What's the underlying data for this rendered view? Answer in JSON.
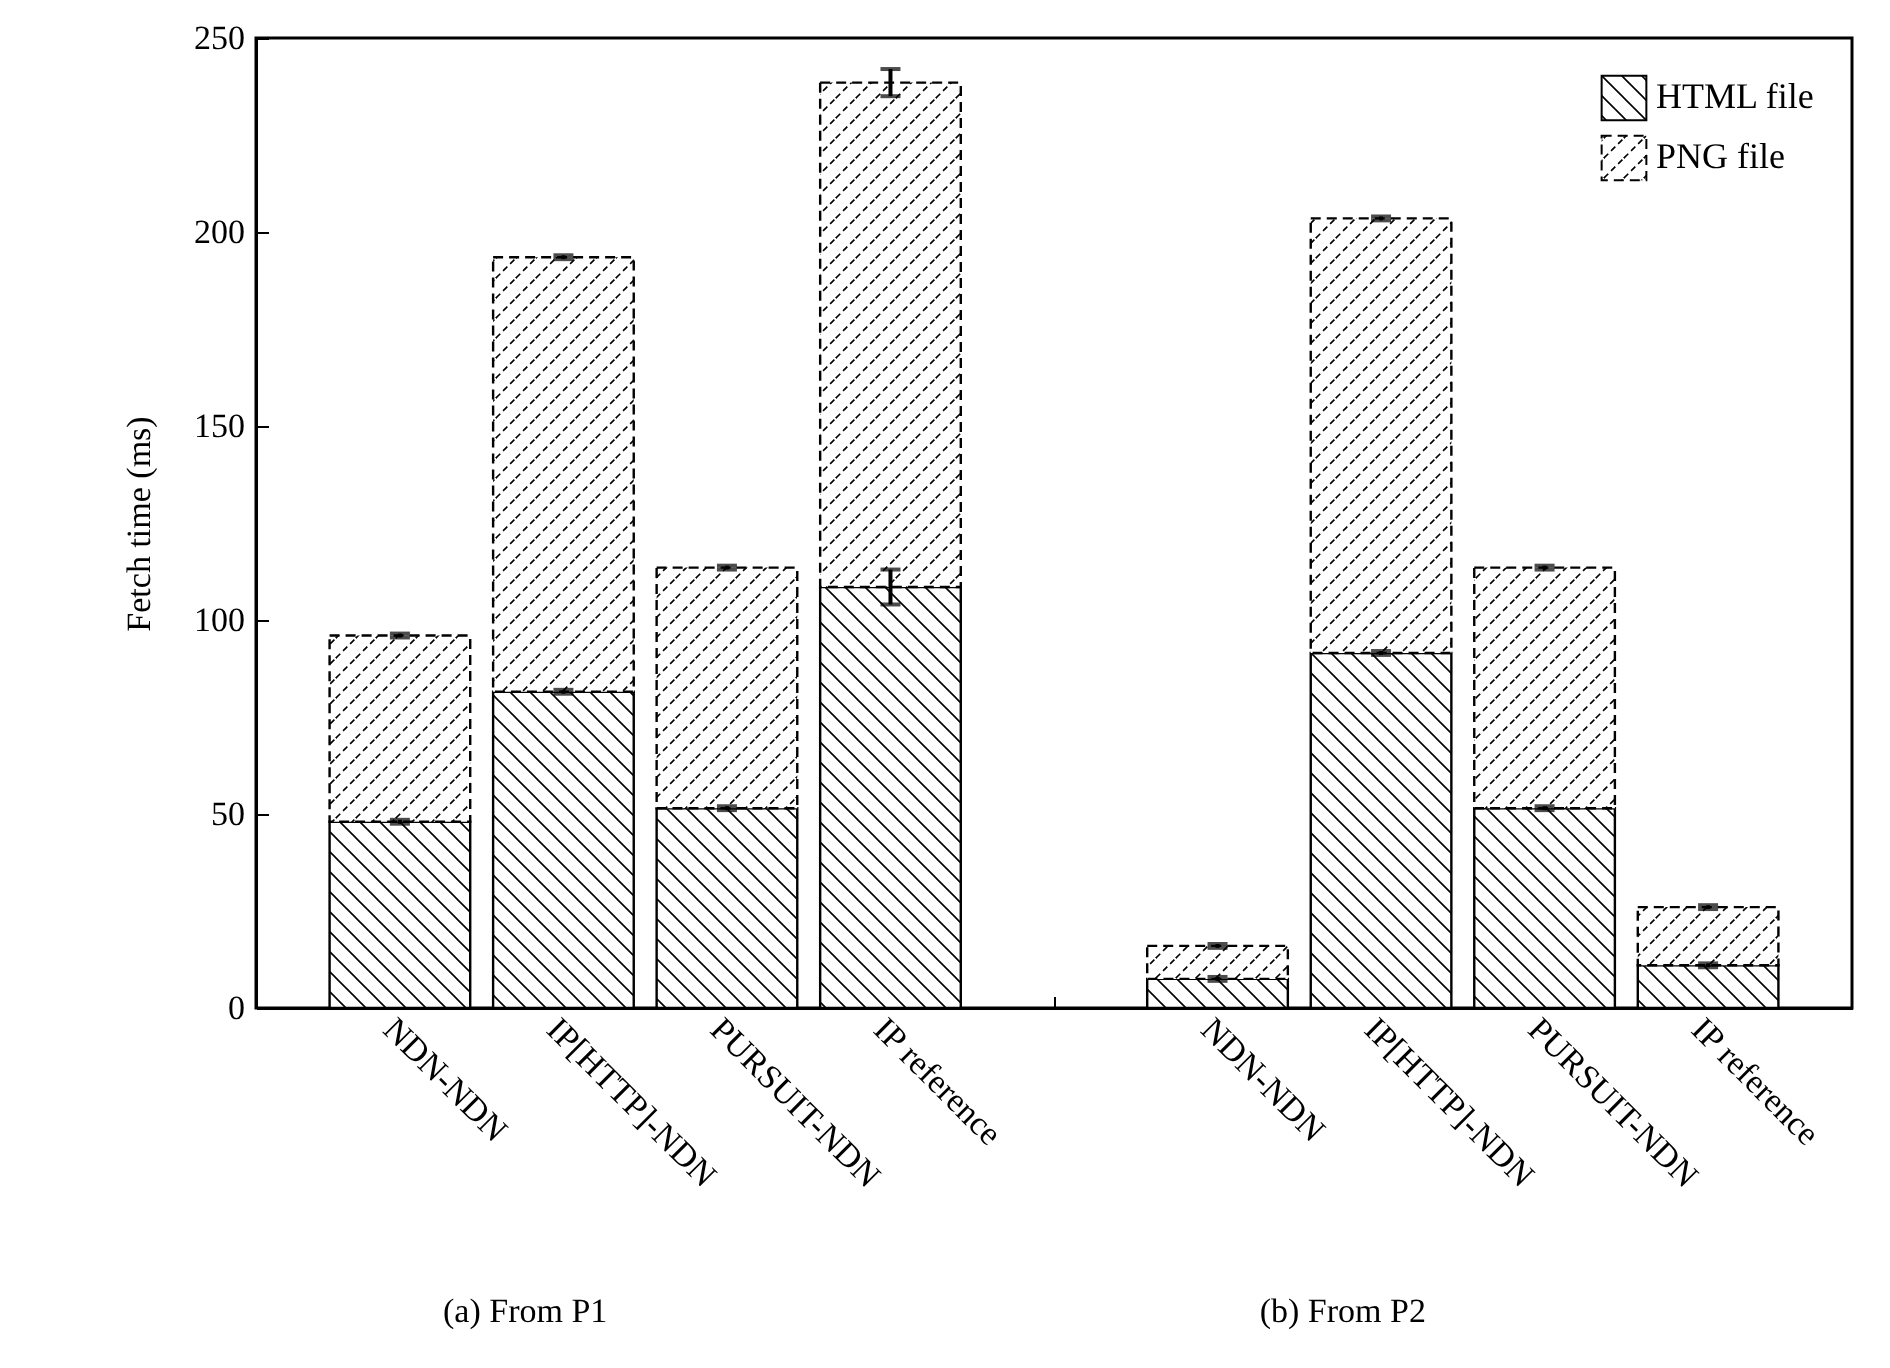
{
  "chart_data": {
    "type": "bar",
    "stacked": true,
    "ylabel": "Fetch time (ms)",
    "categories": [
      "NDN-NDN",
      "IP[HTTP]-NDN",
      "PURSUIT-NDN",
      "IP reference",
      null,
      "NDN-NDN",
      "IP[HTTP]-NDN",
      "PURSUIT-NDN",
      "IP reference"
    ],
    "series": [
      {
        "name": "HTML file",
        "color": "#000000",
        "line_style": "solid",
        "values": [
          48,
          81.5,
          51.5,
          108.5,
          null,
          7.5,
          91.5,
          51.5,
          11
        ],
        "errors": [
          0.5,
          0.5,
          0.5,
          4.5,
          null,
          0.5,
          0.5,
          0.5,
          0.5
        ]
      },
      {
        "name": "PNG file",
        "color": "#000000",
        "line_style": "dashed",
        "values": [
          48,
          112,
          62,
          130,
          null,
          8.5,
          112,
          62,
          15
        ],
        "errors": [
          0.5,
          0.5,
          0.5,
          3.5,
          null,
          0.5,
          0.5,
          0.5,
          0.5
        ]
      }
    ],
    "ylim": [
      0,
      250
    ],
    "yticks": [
      0,
      50,
      100,
      150,
      200,
      250
    ],
    "legend": "top right",
    "grid": false,
    "annotations": [
      "(a) From P1",
      "(b) From P2"
    ]
  }
}
